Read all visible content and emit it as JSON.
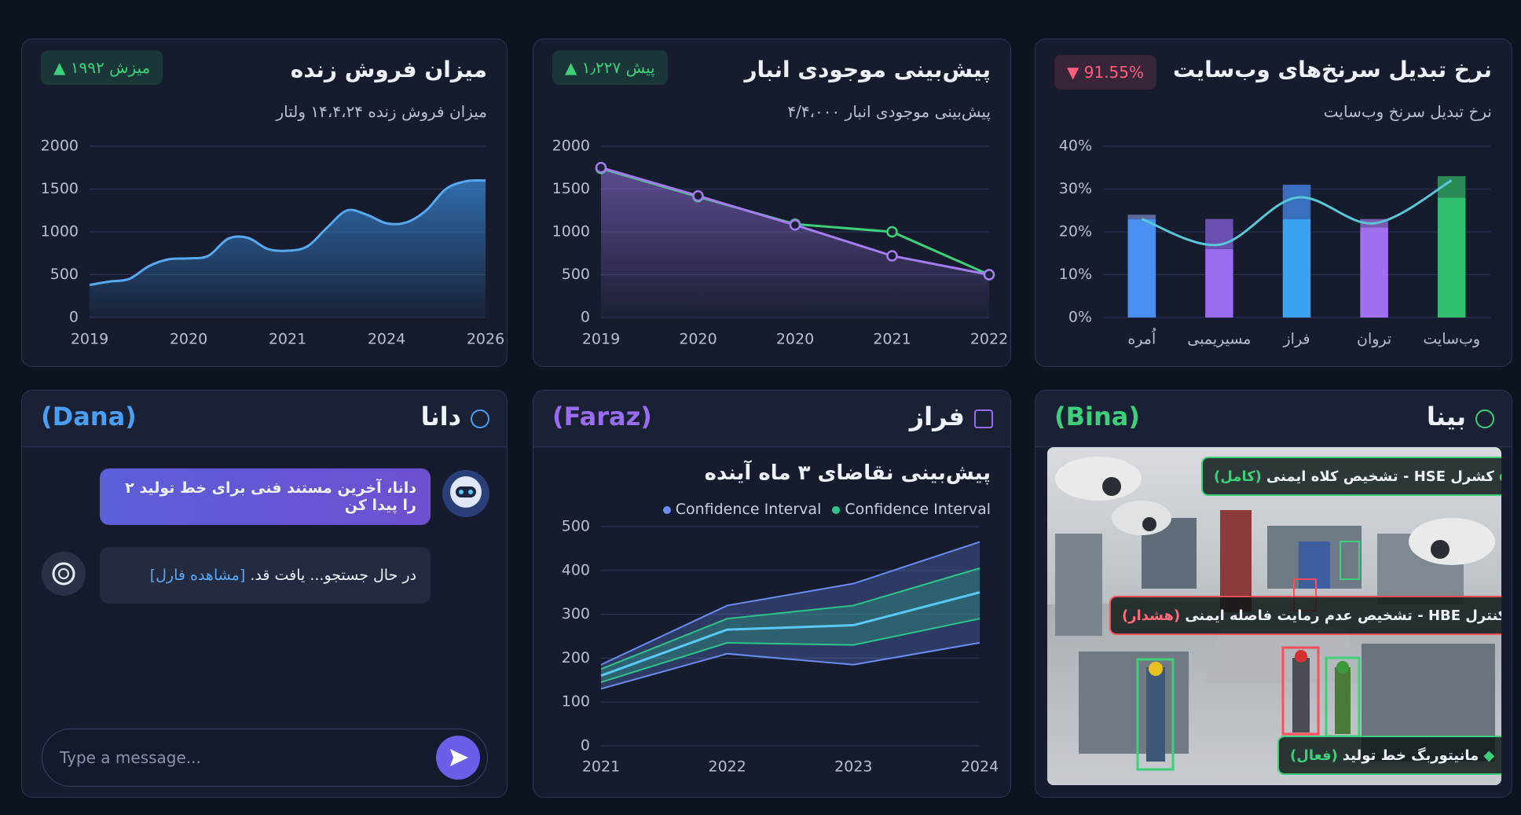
{
  "chart_data": [
    {
      "type": "area",
      "title": "میزان فروش زنده",
      "subtitle": "میزان فروش زنده ۱۴،۴،۲۴ ولتار",
      "badge": {
        "arrow": "▲",
        "label": "میزش ۱۹۹۲",
        "color": "#3ecf7a"
      },
      "categories": [
        "2019",
        null,
        null,
        null,
        null,
        "2020",
        null,
        null,
        null,
        null,
        "2021",
        null,
        null,
        null,
        null,
        "2024",
        null,
        null,
        null,
        null,
        "2026"
      ],
      "values": [
        380,
        420,
        450,
        600,
        680,
        690,
        720,
        920,
        930,
        800,
        780,
        830,
        1050,
        1250,
        1200,
        1100,
        1110,
        1250,
        1500,
        1590,
        1600
      ],
      "color": "#3b8ee0",
      "ylim": [
        0,
        2000
      ],
      "yticks": [
        0,
        500,
        1000,
        1500,
        2000
      ],
      "grid": true
    },
    {
      "type": "line",
      "title": "پیش‌بینی موجودی انبار",
      "subtitle": "پیش‌بینی موجودی انبار ۴/۴،۰۰۰",
      "badge": {
        "arrow": "▲",
        "label": "پیش ۱٫۲۲۷",
        "color": "#3ecf7a"
      },
      "categories": [
        "2019",
        "2020",
        "2020",
        "2021",
        "2022"
      ],
      "series": [
        {
          "color": "#a57bf0",
          "values": [
            1750,
            1420,
            1080,
            720,
            500
          ],
          "area": true
        },
        {
          "color": "#3ecf7a",
          "values": [
            1740,
            1410,
            1090,
            1000,
            500
          ]
        }
      ],
      "ylim": [
        0,
        2000
      ],
      "yticks": [
        0,
        500,
        1000,
        1500,
        2000
      ],
      "grid": true
    },
    {
      "type": "bar",
      "title": "نرخ تبدیل سرنخ‌های وب‌سایت",
      "subtitle": "نرخ تبدیل سرنخ وب‌سایت",
      "badge": {
        "arrow": "▼",
        "label": "91.55%",
        "color": "#ff5d7a"
      },
      "categories": [
        "اُمره",
        "مسیریمبی",
        "فراز",
        "تروان",
        "وب‌سایت"
      ],
      "series": [
        {
          "values": [
            23,
            16,
            23,
            21,
            28
          ],
          "colors": [
            "#4a8ff0",
            "#9a6cf0",
            "#3aa0f0",
            "#a070f0",
            "#30c070"
          ]
        },
        {
          "values": [
            1,
            7,
            8,
            2,
            5
          ],
          "colors": [
            "#5a6a9a",
            "#6a4fb0",
            "#3a6fc0",
            "#7a5ab0",
            "#2a8a55"
          ]
        }
      ],
      "line": {
        "color": "#58c7d8",
        "values": [
          23,
          17,
          28,
          22,
          32
        ]
      },
      "ylim": [
        0,
        40
      ],
      "yticks": [
        {
          "value": 0,
          "label": "0%"
        },
        {
          "value": 10,
          "label": "10%"
        },
        {
          "value": 20,
          "label": "20%"
        },
        {
          "value": 30,
          "label": "30%"
        },
        {
          "value": 40,
          "label": "40%"
        }
      ],
      "grid": true
    },
    {
      "type": "band",
      "title": "پیش‌بینی نقاضای ۳ ماه آینده",
      "categories": [
        "2021",
        "2022",
        "2023",
        "2024"
      ],
      "bands": [
        {
          "name": "Confidence Interval",
          "color": "#6b8cf0",
          "upper": [
            185,
            320,
            370,
            465
          ],
          "lower": [
            130,
            210,
            185,
            235
          ]
        },
        {
          "name": "Confidence Interval",
          "color": "#2ec48c",
          "upper": [
            175,
            290,
            320,
            405
          ],
          "lower": [
            145,
            235,
            230,
            290
          ]
        }
      ],
      "series": [
        {
          "color": "#5ac8f5",
          "values": [
            160,
            265,
            275,
            350
          ]
        }
      ],
      "ylim": [
        0,
        500
      ],
      "yticks": [
        0,
        100,
        200,
        300,
        400,
        500
      ],
      "grid": true
    }
  ],
  "chat": {
    "name": "دانا",
    "latin": "(Dana)",
    "messages": [
      "دانا، آخرین مستند فنی برای خط تولید ۲ را پیدا کن",
      "در حال جستجو... یافت قد."
    ],
    "link": "[مشاهده فارل]",
    "placeholder": "Type a message..."
  },
  "forecast_panel": {
    "name": "فراز",
    "latin": "(Faraz)"
  },
  "vision": {
    "name": "بینا",
    "latin": "(Bina)",
    "alerts": [
      {
        "text": "کشرل HSE - تشخیص کلاه ایمنی",
        "status": "(کامل)"
      },
      {
        "text": "کنترل HBE - تشخیص عدم رمایت فاصله ایمنی",
        "status": "(هشدار)"
      },
      {
        "text": "مانیتوربگ خط تولید",
        "status": "(فعال)"
      }
    ]
  }
}
